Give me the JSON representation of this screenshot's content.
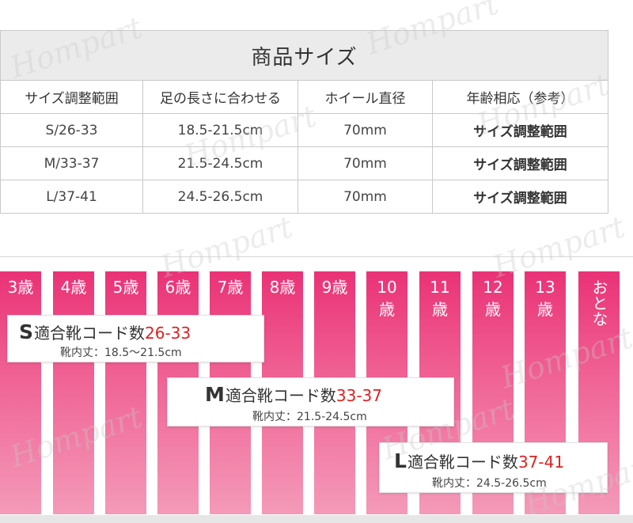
{
  "table": {
    "title": "商品サイズ",
    "headers": [
      "サイズ調整範囲",
      "足の長さに合わせる",
      "ホイール直径",
      "年齢相応（参考）"
    ],
    "rows": [
      [
        "S/26-33",
        "18.5-21.5cm",
        "70mm",
        "サイズ調整範囲"
      ],
      [
        "M/33-37",
        "21.5-24.5cm",
        "70mm",
        "サイズ調整範囲"
      ],
      [
        "L/37-41",
        "24.5-26.5cm",
        "70mm",
        "サイズ調整範囲"
      ]
    ]
  },
  "age_bars": [
    "3歳",
    "4歳",
    "5歳",
    "6歳",
    "7歳",
    "8歳",
    "9歳",
    "10\n歳",
    "11\n歳",
    "12\n歳",
    "13\n歳",
    "おとな"
  ],
  "fit_boxes": [
    {
      "size": "S",
      "label": "適合靴コード数",
      "range": "26-33",
      "sub": "靴内丈：18.5～21.5cm"
    },
    {
      "size": "M",
      "label": "適合靴コード数",
      "range": "33-37",
      "sub": "靴内丈：21.5-24.5cm"
    },
    {
      "size": "L",
      "label": "適合靴コード数",
      "range": "37-41",
      "sub": "靴内丈：24.5-26.5cm"
    }
  ],
  "watermark": "Hompart",
  "colors": {
    "bar": "#ea3276",
    "range_text": "#e02020",
    "header_bg": "#ebebeb"
  }
}
